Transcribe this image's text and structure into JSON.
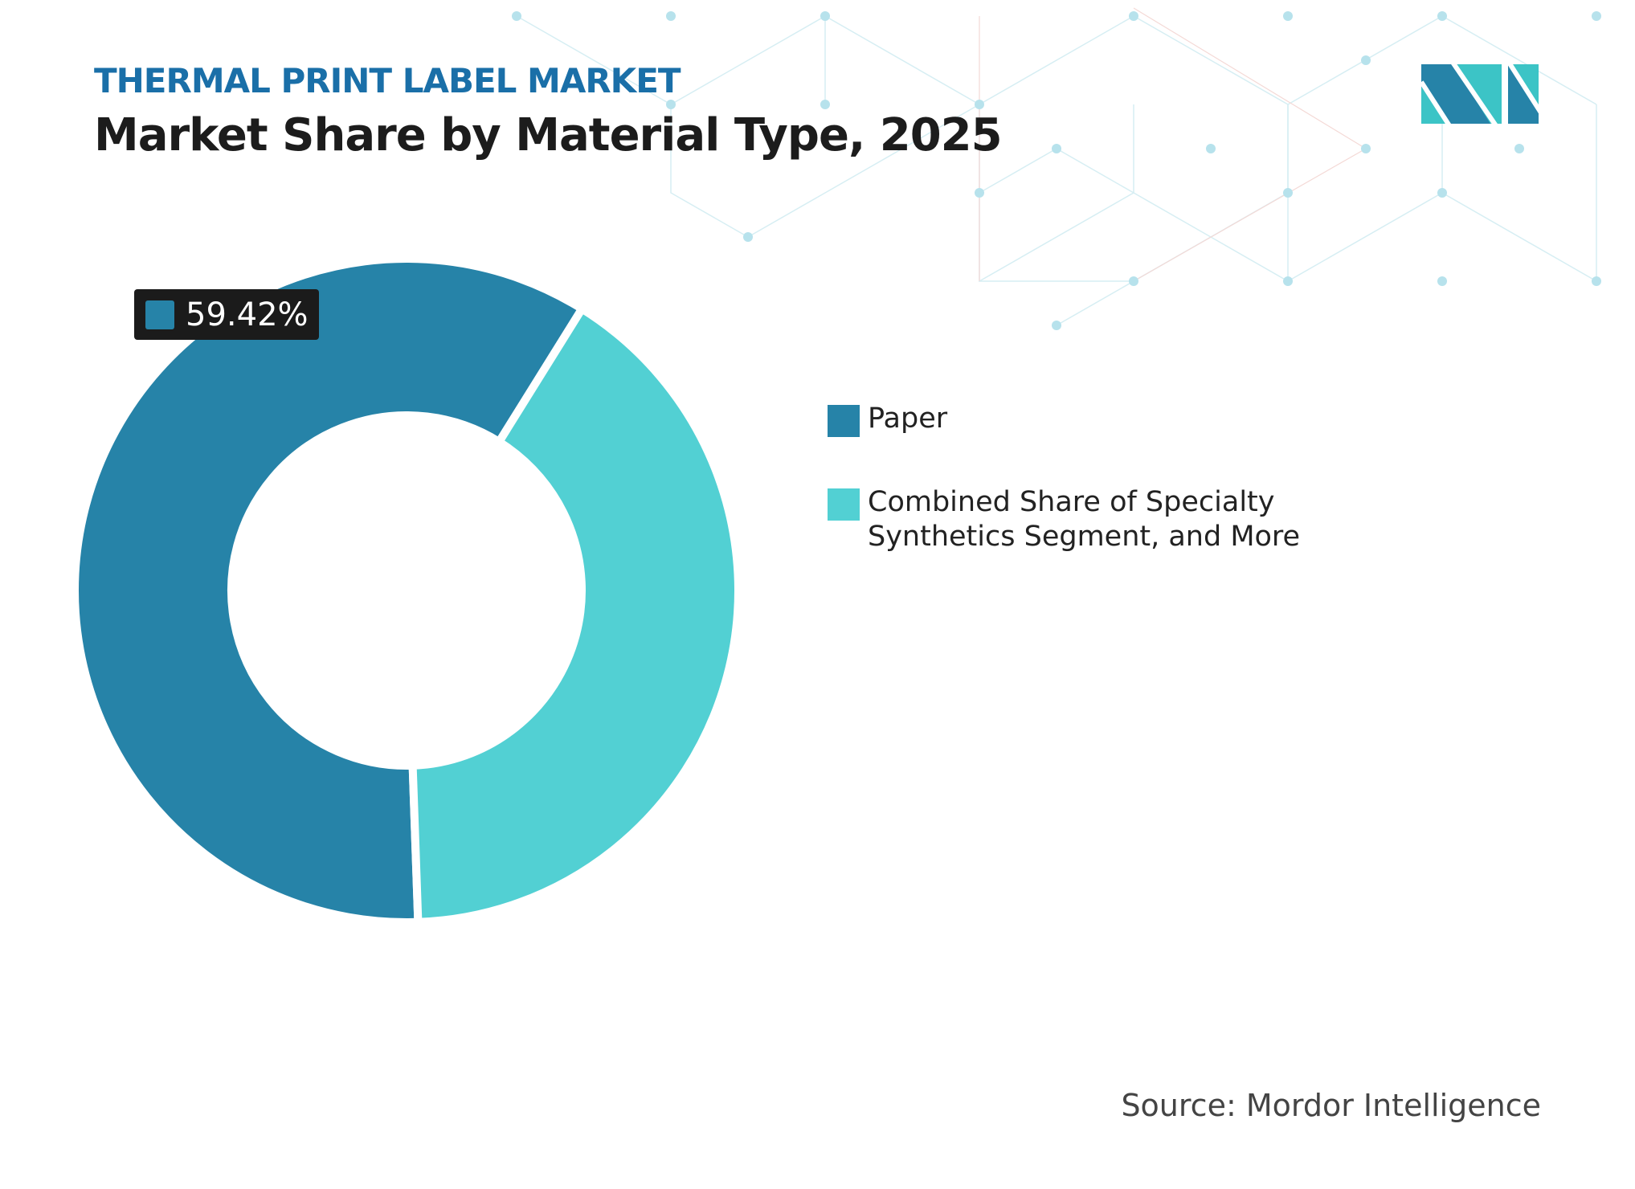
{
  "header": {
    "subtitle": "THERMAL PRINT LABEL MARKET",
    "title": "Market Share by Material Type, 2025"
  },
  "colors": {
    "paper": "#2683a8",
    "other": "#52d0d3",
    "subtitle": "#1a6fa8",
    "label_bg": "#1b1b1b"
  },
  "chart_data": {
    "type": "pie",
    "variant": "donut",
    "categories": [
      "Paper",
      "Combined Share of Specialty Synthetics Segment, and More"
    ],
    "values": [
      59.42,
      40.58
    ],
    "data_labels": [
      "59.42%"
    ],
    "legend_position": "right"
  },
  "legend": {
    "items": [
      {
        "label": "Paper"
      },
      {
        "label": "Combined Share of Specialty Synthetics Segment, and More"
      }
    ]
  },
  "source": "Source: Mordor Intelligence",
  "logo": {
    "text": "MI",
    "icon": "mordor-intelligence-logo"
  }
}
